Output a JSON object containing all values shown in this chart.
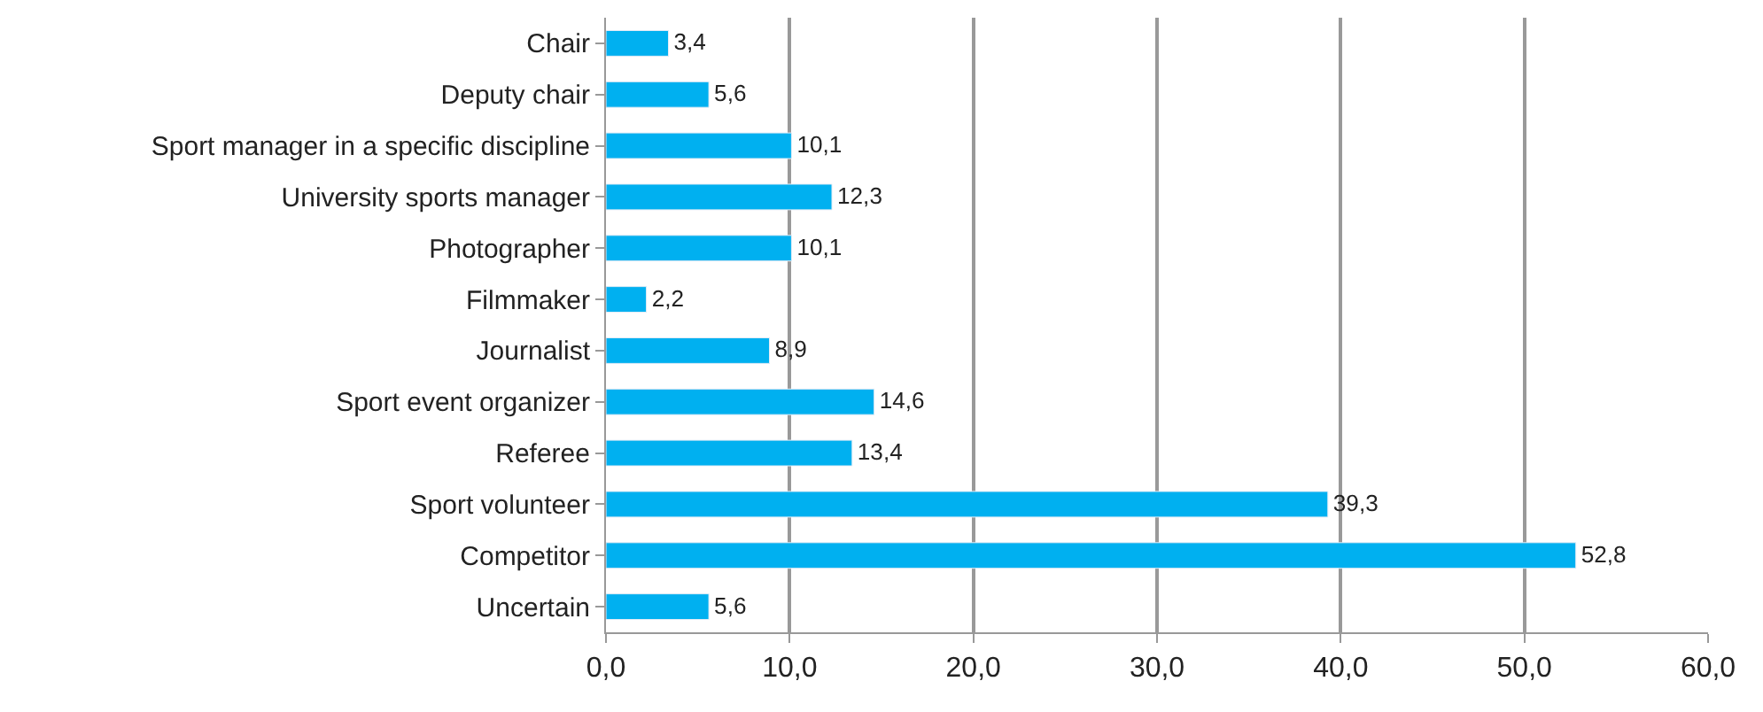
{
  "chart_data": {
    "type": "bar",
    "orientation": "horizontal",
    "categories": [
      "Chair",
      "Deputy chair",
      "Sport manager in a specific discipline",
      "University sports manager",
      "Photographer",
      "Filmmaker",
      "Journalist",
      "Sport event organizer",
      "Referee",
      "Sport volunteer",
      "Competitor",
      "Uncertain"
    ],
    "values": [
      3.4,
      5.6,
      10.1,
      12.3,
      10.1,
      2.2,
      8.9,
      14.6,
      13.4,
      39.3,
      52.8,
      5.6
    ],
    "value_labels": [
      "3,4",
      "5,6",
      "10,1",
      "12,3",
      "10,1",
      "2,2",
      "8,9",
      "14,6",
      "13,4",
      "39,3",
      "52,8",
      "5,6"
    ],
    "color": "#00b0f0",
    "xlim": [
      0,
      60
    ],
    "xticks": [
      {
        "value": 0,
        "label": "0,0"
      },
      {
        "value": 10,
        "label": "10,0"
      },
      {
        "value": 20,
        "label": "20,0"
      },
      {
        "value": 30,
        "label": "30,0"
      },
      {
        "value": 40,
        "label": "40,0"
      },
      {
        "value": 50,
        "label": "50,0"
      },
      {
        "value": 60,
        "label": "60,0"
      }
    ],
    "grid": "x",
    "legend": false
  }
}
